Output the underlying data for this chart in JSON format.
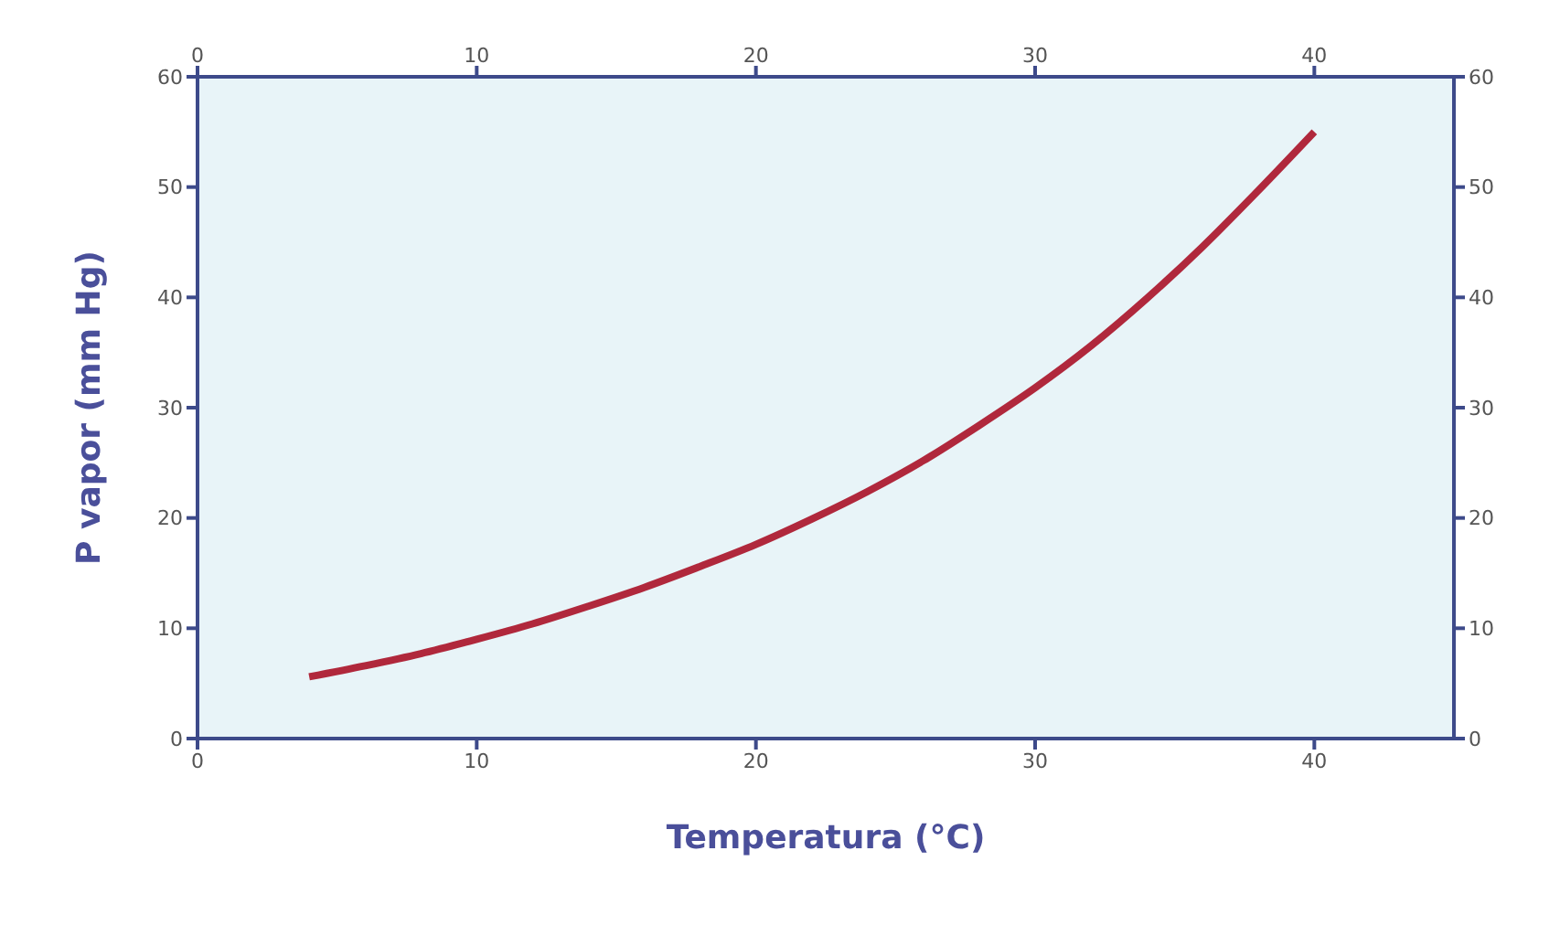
{
  "chart_data": {
    "type": "line",
    "xlabel": "Temperatura (°C)",
    "ylabel": "P vapor (mm Hg)",
    "x": [
      4,
      6,
      8,
      10,
      12,
      14,
      16,
      18,
      20,
      22,
      24,
      26,
      28,
      30,
      32,
      34,
      36,
      38,
      40
    ],
    "series": [
      {
        "color": "#b0283c",
        "values": [
          5.6,
          6.6,
          7.7,
          9.0,
          10.4,
          12.0,
          13.7,
          15.6,
          17.6,
          19.9,
          22.4,
          25.2,
          28.4,
          31.8,
          35.6,
          39.9,
          44.6,
          49.7,
          55.0
        ]
      }
    ],
    "xlim": [
      0,
      45
    ],
    "xticks": [
      0,
      10,
      20,
      30,
      40
    ],
    "ylim": [
      0,
      60
    ],
    "yticks": [
      0,
      10,
      20,
      30,
      40,
      50,
      60
    ],
    "x2lim": [
      0,
      45
    ],
    "x2ticks": [
      0,
      10,
      20,
      30,
      40
    ],
    "y2lim": [
      0,
      60
    ],
    "y2ticks": [
      0,
      10,
      20,
      30,
      40,
      50,
      60
    ],
    "grid": false,
    "legend": false,
    "marker": "none",
    "line_style": "solid"
  }
}
